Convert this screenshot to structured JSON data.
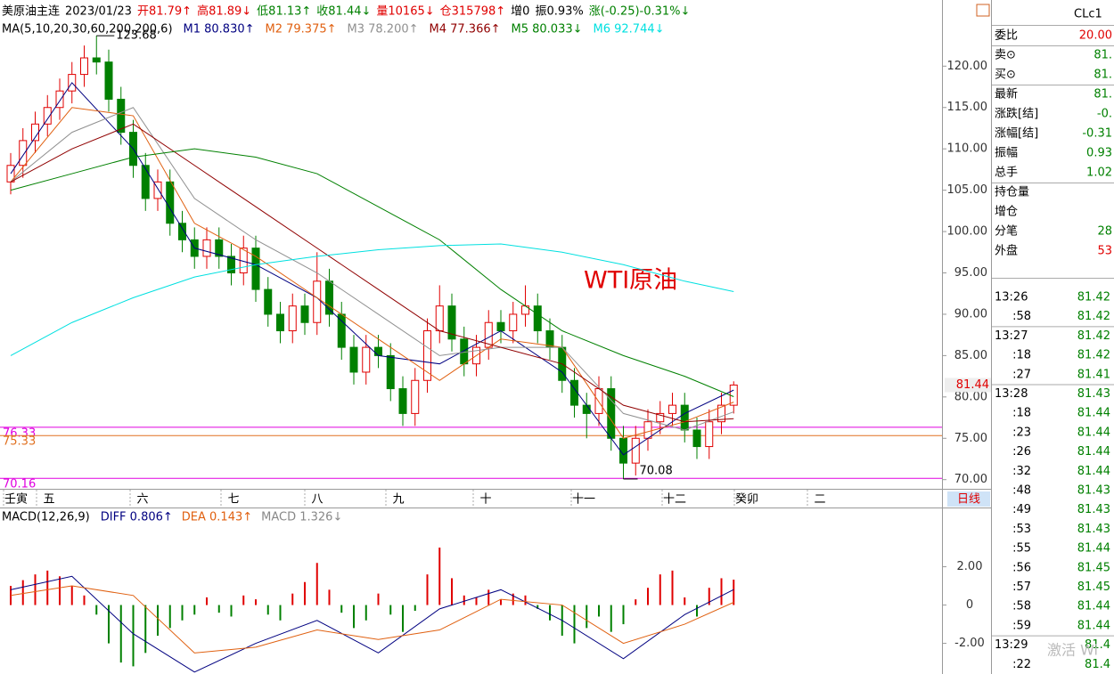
{
  "header": {
    "items": [
      "美原油主连",
      "2023/01/23",
      "开81.79↑",
      "高81.89↓",
      "低81.13↑",
      "收81.44↓",
      "量10165↓",
      "仓315798↑",
      "增0",
      "振0.93%",
      "涨(-0.25)-0.31%↓"
    ],
    "ma_title": "MA(5,10,20,30,60,200,200,6)"
  },
  "chart": {
    "type": "candlestick",
    "watermark": "WTI原油",
    "ylim": [
      69,
      128
    ],
    "yticks": [
      {
        "value": 120,
        "label": "120.00"
      },
      {
        "value": 115,
        "label": "115.00"
      },
      {
        "value": 110,
        "label": "110.00"
      },
      {
        "value": 105,
        "label": "105.00"
      },
      {
        "value": 100,
        "label": "100.00"
      },
      {
        "value": 95,
        "label": "95.00"
      },
      {
        "value": 90,
        "label": "90.00"
      },
      {
        "value": 85,
        "label": "85.00"
      },
      {
        "value": 80,
        "label": "80.00"
      },
      {
        "value": 75,
        "label": "75.00"
      },
      {
        "value": 70,
        "label": "70.00"
      }
    ],
    "last": 81.44,
    "annotations": [
      123.68,
      70.08
    ],
    "levels": [
      {
        "value": 76.33,
        "label": "76.33",
        "color": "#e000e0"
      },
      {
        "value": 75.33,
        "label": "75.33",
        "color": "#e07020"
      },
      {
        "value": 70.16,
        "label": "70.16",
        "color": "#e000e0"
      }
    ],
    "time_labels": [
      "壬寅",
      "五",
      "六",
      "七",
      "八",
      "九",
      "十",
      "十一",
      "十二",
      "癸卯",
      "二"
    ],
    "period": "日线",
    "candles": [
      [
        106,
        109.5,
        104.5,
        108
      ],
      [
        108,
        112.5,
        106.5,
        111
      ],
      [
        111,
        114.5,
        109.5,
        113
      ],
      [
        113,
        116.5,
        111.5,
        115
      ],
      [
        115,
        118.5,
        113.5,
        117
      ],
      [
        117,
        120.5,
        115.5,
        119
      ],
      [
        119,
        122.5,
        117.5,
        121
      ],
      [
        121,
        123.68,
        119,
        120.5
      ],
      [
        120.5,
        122,
        114.5,
        116
      ],
      [
        116,
        117.5,
        110.5,
        112
      ],
      [
        112,
        113.5,
        106.5,
        108
      ],
      [
        108,
        109.5,
        102.5,
        104
      ],
      [
        104,
        107.5,
        102.5,
        106
      ],
      [
        106,
        107.5,
        99.5,
        101
      ],
      [
        101,
        102.5,
        97.5,
        99
      ],
      [
        99,
        100.5,
        95.5,
        97
      ],
      [
        97,
        100.5,
        95.5,
        99
      ],
      [
        99,
        100.5,
        95.5,
        97
      ],
      [
        97,
        98.5,
        93.5,
        95
      ],
      [
        95,
        99.5,
        93.5,
        98
      ],
      [
        98,
        99.5,
        91.5,
        93
      ],
      [
        93,
        94.5,
        88.5,
        90
      ],
      [
        90,
        91.5,
        86.5,
        88
      ],
      [
        88,
        92.5,
        86.5,
        91
      ],
      [
        91,
        92.5,
        87.5,
        89
      ],
      [
        89,
        97.5,
        87.5,
        94
      ],
      [
        94,
        95.5,
        88.5,
        90
      ],
      [
        90,
        91.5,
        84.5,
        86
      ],
      [
        86,
        87.5,
        81.5,
        83
      ],
      [
        83,
        87.5,
        81.5,
        86
      ],
      [
        86,
        87.5,
        83.5,
        85
      ],
      [
        85,
        86.5,
        79.5,
        81
      ],
      [
        81,
        82.5,
        76.5,
        78
      ],
      [
        78,
        83.5,
        76.5,
        82
      ],
      [
        82,
        89.5,
        80.5,
        88
      ],
      [
        88,
        93.5,
        86.5,
        91
      ],
      [
        91,
        92.5,
        85.5,
        87
      ],
      [
        87,
        88.5,
        82.5,
        84
      ],
      [
        84,
        87.5,
        82.5,
        86
      ],
      [
        86,
        90.5,
        84.5,
        89
      ],
      [
        89,
        90.5,
        86.5,
        88
      ],
      [
        88,
        91.5,
        86.5,
        90
      ],
      [
        90,
        93.5,
        88.5,
        91
      ],
      [
        91,
        92.5,
        86.5,
        88
      ],
      [
        88,
        89.5,
        84.5,
        86
      ],
      [
        86,
        87.5,
        80.5,
        82
      ],
      [
        82,
        83.5,
        77.5,
        79
      ],
      [
        79,
        80.5,
        75,
        78
      ],
      [
        78,
        82.5,
        76.5,
        81
      ],
      [
        81,
        82.5,
        73.5,
        75
      ],
      [
        75,
        76.5,
        70.08,
        72
      ],
      [
        72,
        76.5,
        70.5,
        75
      ],
      [
        75,
        78.5,
        73.5,
        77
      ],
      [
        77,
        79.5,
        75.5,
        78
      ],
      [
        78,
        80.5,
        76.5,
        79
      ],
      [
        79,
        80.5,
        74.5,
        76
      ],
      [
        76,
        77.5,
        72.5,
        74
      ],
      [
        74,
        78.5,
        72.5,
        77
      ],
      [
        77,
        80.5,
        75.5,
        79
      ],
      [
        79,
        81.89,
        78,
        81.44
      ]
    ],
    "ma_x": [
      0,
      5,
      10,
      15,
      20,
      25,
      30,
      35,
      40,
      45,
      50,
      55,
      59
    ],
    "series": [
      {
        "name": "M1",
        "label": "M1 80.830↑",
        "color": "#000080",
        "values": [
          107,
          118,
          110,
          98,
          96,
          92,
          85,
          84,
          88,
          83,
          73,
          78,
          80.83
        ]
      },
      {
        "name": "M2",
        "label": "M2 79.375↑",
        "color": "#e06010",
        "values": [
          106,
          115,
          114,
          101,
          97,
          92,
          87,
          82,
          87,
          86,
          75,
          77,
          79.375
        ]
      },
      {
        "name": "M3",
        "label": "M3 78.200↑",
        "color": "#909090",
        "values": [
          106,
          112,
          115,
          104,
          99,
          95,
          90,
          85,
          86,
          86,
          78,
          76,
          78.2
        ]
      },
      {
        "name": "M4",
        "label": "M4 77.366↑",
        "color": "#900000",
        "values": [
          106,
          110,
          113,
          108,
          103,
          98,
          93,
          88,
          86,
          84,
          79,
          77,
          77.366
        ]
      },
      {
        "name": "M5",
        "label": "M5 80.033↓",
        "color": "#008000",
        "values": [
          105,
          107,
          109,
          110,
          109,
          107,
          103,
          99,
          93,
          88,
          85,
          82.5,
          80.033
        ]
      },
      {
        "name": "M6",
        "label": "M6 92.744↓",
        "color": "#00e0e0",
        "values": [
          85,
          89,
          92,
          94.5,
          96,
          97,
          97.8,
          98.3,
          98.5,
          97.5,
          96,
          94,
          92.744
        ]
      }
    ]
  },
  "macd": {
    "type": "macd",
    "title": "MACD(12,26,9)",
    "ylim": [
      -3.6,
      5
    ],
    "yticks": [
      {
        "value": 2,
        "label": "2.00"
      },
      0,
      {
        "value": -2,
        "label": "-2.00"
      }
    ],
    "histogram": {
      "label": "MACD 1.326↓",
      "values": [
        1.0,
        1.3,
        1.6,
        1.8,
        1.5,
        1.0,
        0.5,
        -0.5,
        -2.0,
        -3.0,
        -3.2,
        -2.5,
        -1.6,
        -1.2,
        -0.8,
        -0.5,
        0.4,
        -0.4,
        -0.6,
        0.5,
        0.3,
        -0.5,
        -0.8,
        0.6,
        1.2,
        2.2,
        0.8,
        -0.4,
        -1.2,
        -0.8,
        0.6,
        -0.5,
        -1.4,
        -0.3,
        1.6,
        3.0,
        1.4,
        0.5,
        0.4,
        0.8,
        0.3,
        0.6,
        0.5,
        -0.2,
        -0.8,
        -1.6,
        -2.0,
        -1.2,
        -0.6,
        -1.4,
        -1.0,
        0.3,
        0.9,
        1.6,
        1.8,
        0.4,
        -0.6,
        0.9,
        1.4,
        1.326
      ]
    },
    "series": [
      {
        "name": "DIFF",
        "label": "DIFF 0.806↑",
        "color": "#000080",
        "values": [
          0.8,
          1.5,
          -1.5,
          -3.5,
          -2.0,
          -0.8,
          -2.5,
          -0.2,
          0.8,
          -0.8,
          -2.8,
          -0.5,
          0.806
        ]
      },
      {
        "name": "DEA",
        "label": "DEA 0.143↑",
        "color": "#e06010",
        "values": [
          0.5,
          1.0,
          0.5,
          -2.5,
          -2.2,
          -1.3,
          -1.8,
          -1.3,
          0.3,
          0.0,
          -2.0,
          -1.0,
          0.143
        ]
      }
    ]
  },
  "quote": {
    "symbol": "CLc1",
    "rows": [
      {
        "label": "委比",
        "value": "20.00"
      },
      {
        "label": "卖⊙",
        "value": "81."
      },
      {
        "label": "买⊙",
        "value": "81."
      },
      {
        "label": "最新",
        "value": "81."
      },
      {
        "label": "涨跌[结]",
        "value": "-0."
      },
      {
        "label": "涨幅[结]",
        "value": "-0.31"
      },
      {
        "label": "振幅",
        "value": "0.93"
      },
      {
        "label": "总手",
        "value": "1.02"
      },
      {
        "label": "持仓量"
      },
      {
        "label": "增仓"
      },
      {
        "label": "分笔",
        "value": "28"
      },
      {
        "label": "外盘",
        "value": "53"
      }
    ]
  },
  "trades": [
    [
      "13:26",
      "81.42"
    ],
    [
      ":58",
      "81.42"
    ],
    [
      "13:27",
      "81.42"
    ],
    [
      ":18",
      "81.42"
    ],
    [
      ":27",
      "81.41"
    ],
    [
      "13:28",
      "81.43"
    ],
    [
      ":18",
      "81.44"
    ],
    [
      ":23",
      "81.44"
    ],
    [
      ":26",
      "81.44"
    ],
    [
      ":32",
      "81.44"
    ],
    [
      ":48",
      "81.43"
    ],
    [
      ":49",
      "81.43"
    ],
    [
      ":53",
      "81.43"
    ],
    [
      ":55",
      "81.44"
    ],
    [
      ":56",
      "81.45"
    ],
    [
      ":57",
      "81.45"
    ],
    [
      ":58",
      "81.44"
    ],
    [
      ":59",
      "81.44"
    ],
    [
      "13:29",
      "81.4"
    ],
    [
      ":22",
      "81.4"
    ]
  ],
  "watermark": "激活 Wi"
}
